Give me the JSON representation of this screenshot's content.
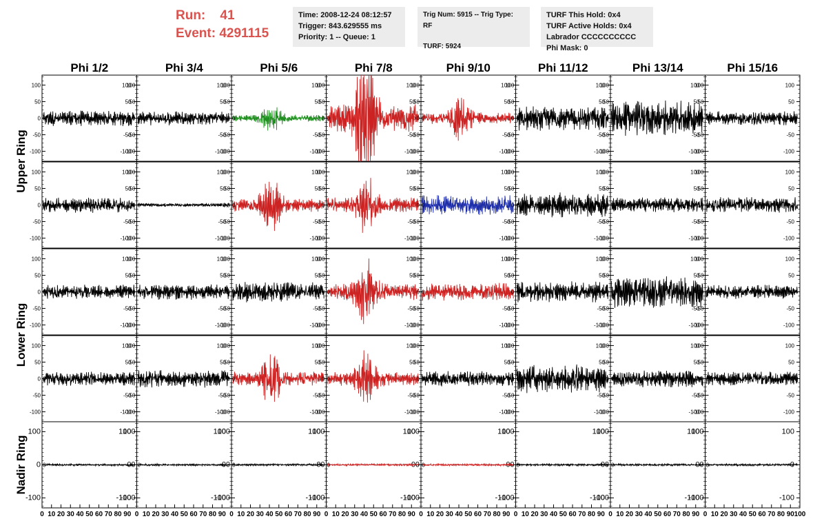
{
  "header": {
    "run_label": "Run:",
    "run_value": "41",
    "event_label": "Event:",
    "event_value": "4291115"
  },
  "info_time": {
    "time": "Time: 2008-12-24 08:12:57",
    "trigger": "Trigger: 843.629555 ms",
    "priority": "Priority: 1 -- Queue: 1"
  },
  "info_trig": {
    "trig": "Trig Num: 5915 -- Trig Type: RF",
    "turf": "TURF: 5924"
  },
  "info_turf": {
    "hold": "TURF This Hold: 0x4",
    "active": "TURF Active Holds: 0x4",
    "labrador": "Labrador CCCCCCCCCC",
    "phimask": "Phi Mask: 0"
  },
  "chart_data": {
    "type": "line",
    "columns": [
      "Phi 1/2",
      "Phi 3/4",
      "Phi 5/6",
      "Phi 7/8",
      "Phi 9/10",
      "Phi 11/12",
      "Phi 13/14",
      "Phi 15/16"
    ],
    "ring_labels": [
      "Upper Ring",
      "Lower Ring",
      "Nadir Ring"
    ],
    "xlim": [
      0,
      100
    ],
    "ylim": [
      -130,
      130
    ],
    "x_ticks": [
      0,
      10,
      20,
      30,
      40,
      50,
      60,
      70,
      80,
      90,
      100
    ],
    "y_ticks_left": [
      100,
      50,
      0,
      -50,
      -100
    ],
    "y_ticks_right": [
      100,
      50,
      0,
      -50,
      -100
    ],
    "nadir_y_ticks": [
      100,
      0,
      -100
    ],
    "colors": {
      "normal": "#000000",
      "triggered": "#cc2222",
      "green": "#1f8f1f",
      "blue": "#1f2faa"
    },
    "rows": [
      {
        "colors": [
          "normal",
          "normal",
          "green",
          "triggered",
          "triggered",
          "normal",
          "normal",
          "normal"
        ],
        "amps": [
          22,
          20,
          28,
          110,
          45,
          35,
          50,
          20
        ],
        "bursts": [
          0,
          0,
          1,
          2,
          1,
          0,
          0,
          0
        ]
      },
      {
        "colors": [
          "normal",
          "normal",
          "triggered",
          "triggered",
          "blue",
          "normal",
          "normal",
          "normal"
        ],
        "amps": [
          22,
          5,
          55,
          60,
          28,
          35,
          22,
          22
        ],
        "bursts": [
          0,
          0,
          1,
          1,
          0,
          0,
          0,
          0
        ]
      },
      {
        "colors": [
          "normal",
          "normal",
          "normal",
          "triggered",
          "triggered",
          "normal",
          "normal",
          "normal"
        ],
        "amps": [
          20,
          22,
          30,
          65,
          25,
          30,
          45,
          20
        ],
        "bursts": [
          0,
          0,
          0,
          1,
          0,
          0,
          0,
          0
        ]
      },
      {
        "colors": [
          "normal",
          "normal",
          "triggered",
          "triggered",
          "normal",
          "normal",
          "normal",
          "normal"
        ],
        "amps": [
          20,
          25,
          55,
          55,
          22,
          40,
          25,
          20
        ],
        "bursts": [
          0,
          0,
          1,
          1,
          0,
          0,
          0,
          0
        ]
      },
      {
        "colors": [
          "normal",
          "normal",
          "normal",
          "triggered",
          "triggered",
          "normal",
          "normal",
          "normal"
        ],
        "amps": [
          3,
          3,
          3,
          3,
          3,
          3,
          3,
          3
        ],
        "bursts": [
          0,
          0,
          0,
          0,
          0,
          0,
          0,
          0
        ]
      }
    ]
  }
}
